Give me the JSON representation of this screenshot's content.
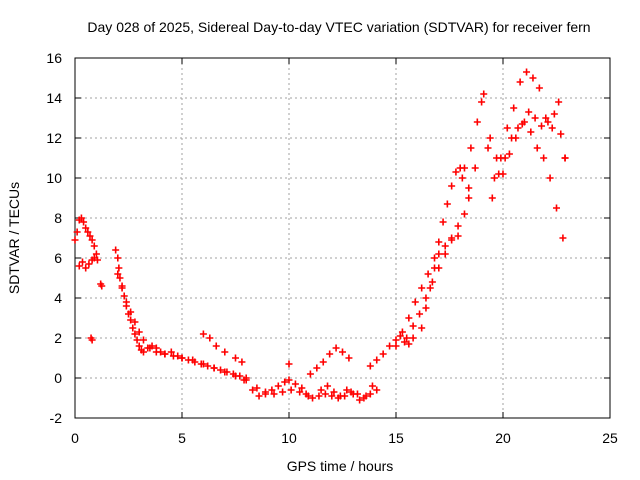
{
  "chart_data": {
    "type": "scatter",
    "title": "Day 028 of 2025, Sidereal Day-to-day VTEC variation (SDTVAR) for receiver fern",
    "xlabel": "GPS time / hours",
    "ylabel": "SDTVAR / TECUs",
    "xlim": [
      0,
      25
    ],
    "ylim": [
      -2,
      16
    ],
    "xticks": [
      0,
      5,
      10,
      15,
      20,
      25
    ],
    "yticks": [
      -2,
      0,
      2,
      4,
      6,
      8,
      10,
      12,
      14,
      16
    ],
    "grid": true,
    "marker": "plus",
    "color": "#ff0000",
    "series": [
      {
        "name": "SDTVAR",
        "x": [
          0.0,
          0.1,
          0.2,
          0.3,
          0.4,
          0.5,
          0.6,
          0.7,
          0.8,
          0.9,
          1.0,
          1.05,
          0.2,
          0.35,
          0.5,
          0.65,
          0.8,
          0.9,
          0.75,
          0.8,
          1.2,
          1.25,
          1.9,
          2.0,
          2.05,
          2.1,
          2.2,
          2.3,
          2.4,
          2.5,
          2.6,
          2.7,
          2.8,
          2.9,
          3.0,
          3.1,
          3.2,
          3.4,
          3.6,
          3.8,
          4.0,
          4.2,
          4.5,
          4.8,
          5.0,
          5.3,
          5.6,
          5.9,
          6.2,
          6.5,
          6.8,
          7.1,
          7.4,
          7.7,
          8.0,
          2.0,
          2.2,
          2.4,
          2.6,
          2.8,
          3.0,
          3.2,
          3.5,
          3.8,
          4.2,
          4.6,
          5.0,
          5.5,
          6.0,
          6.5,
          7.0,
          7.5,
          7.9,
          6.0,
          6.3,
          6.6,
          7.0,
          7.5,
          7.8,
          8.0,
          8.3,
          8.6,
          8.9,
          9.2,
          9.5,
          9.8,
          10.0,
          10.3,
          10.6,
          8.5,
          8.9,
          9.3,
          9.7,
          10.1,
          10.5,
          10.9,
          10.0,
          10.8,
          11.1,
          11.4,
          11.7,
          12.0,
          12.3,
          12.6,
          12.9,
          13.2,
          13.5,
          13.8,
          14.1,
          11.0,
          11.3,
          11.6,
          11.9,
          12.2,
          12.5,
          12.8,
          11.5,
          11.8,
          12.1,
          12.4,
          12.7,
          13.0,
          13.3,
          13.6,
          13.9,
          13.8,
          14.1,
          14.4,
          14.7,
          15.0,
          15.2,
          15.4,
          15.6,
          15.8,
          15.0,
          15.3,
          15.6,
          15.9,
          16.2,
          16.5,
          16.8,
          17.0,
          17.2,
          17.4,
          17.6,
          17.8,
          18.0,
          18.1,
          15.5,
          15.8,
          16.1,
          16.4,
          16.7,
          17.0,
          17.3,
          17.6,
          17.9,
          18.2,
          18.4,
          16.2,
          16.4,
          16.6,
          16.8,
          17.0,
          17.3,
          17.6,
          17.9,
          18.2,
          18.5,
          18.8,
          19.1,
          19.4,
          19.7,
          20.0,
          20.3,
          20.6,
          20.9,
          21.2,
          21.5,
          21.8,
          22.1,
          22.4,
          22.7,
          22.9,
          18.4,
          18.7,
          19.0,
          19.3,
          19.6,
          19.9,
          20.2,
          20.5,
          20.8,
          21.1,
          21.4,
          21.7,
          22.0,
          22.3,
          22.6,
          22.9,
          19.5,
          19.8,
          20.1,
          20.4,
          20.7,
          21.0,
          21.3,
          21.6,
          21.9,
          22.2,
          22.5,
          22.8
        ],
        "y": [
          6.9,
          7.3,
          7.9,
          8.0,
          7.8,
          7.5,
          7.3,
          7.1,
          6.9,
          6.6,
          6.2,
          5.9,
          5.6,
          5.8,
          5.5,
          5.7,
          5.9,
          6.0,
          2.0,
          1.9,
          4.7,
          4.6,
          6.4,
          6.0,
          5.5,
          5.0,
          4.6,
          4.1,
          3.6,
          3.2,
          2.9,
          2.5,
          2.2,
          1.9,
          1.6,
          1.4,
          1.3,
          1.5,
          1.6,
          1.5,
          1.3,
          1.2,
          1.3,
          1.1,
          1.0,
          0.9,
          0.8,
          0.7,
          0.6,
          0.5,
          0.4,
          0.3,
          0.2,
          0.1,
          0.0,
          5.2,
          4.5,
          3.8,
          3.3,
          2.8,
          2.3,
          1.9,
          1.5,
          1.3,
          1.2,
          1.1,
          1.0,
          0.9,
          0.7,
          0.5,
          0.3,
          0.1,
          -0.1,
          2.2,
          2.0,
          1.6,
          1.3,
          1.0,
          0.8,
          -0.1,
          -0.6,
          -0.9,
          -0.8,
          -0.6,
          -0.4,
          -0.2,
          -0.1,
          -0.3,
          -0.5,
          -0.5,
          -0.7,
          -0.8,
          -0.7,
          -0.6,
          -0.7,
          -0.9,
          0.7,
          -0.8,
          -1.0,
          -0.9,
          -0.8,
          -0.9,
          -1.0,
          -0.9,
          -0.7,
          -0.8,
          -1.0,
          -0.8,
          -0.6,
          0.2,
          0.5,
          0.8,
          1.2,
          1.5,
          1.3,
          1.0,
          -0.6,
          -0.4,
          -0.7,
          -0.9,
          -0.6,
          -0.8,
          -1.1,
          -0.9,
          -0.4,
          0.6,
          0.9,
          1.2,
          1.6,
          1.9,
          2.1,
          1.8,
          1.7,
          2.0,
          1.6,
          2.3,
          3.0,
          3.8,
          4.5,
          5.2,
          6.0,
          6.8,
          7.8,
          8.7,
          9.6,
          10.3,
          10.5,
          10.0,
          2.0,
          2.6,
          3.2,
          4.0,
          4.8,
          5.5,
          6.2,
          7.0,
          7.6,
          8.2,
          9.0,
          2.5,
          3.5,
          4.5,
          5.5,
          6.2,
          6.6,
          6.9,
          7.1,
          10.5,
          11.5,
          12.8,
          14.2,
          12.0,
          11.0,
          10.2,
          11.2,
          12.0,
          12.7,
          13.3,
          13.0,
          12.6,
          12.8,
          13.2,
          12.2,
          11.0,
          9.5,
          10.5,
          13.8,
          11.5,
          10.0,
          11.0,
          12.5,
          13.5,
          14.8,
          15.3,
          15.0,
          14.5,
          13.0,
          12.5,
          13.8,
          11.0,
          9.0,
          10.2,
          11.0,
          12.0,
          12.5,
          12.8,
          12.3,
          11.5,
          11.0,
          10.0,
          8.5,
          7.0
        ]
      }
    ]
  }
}
